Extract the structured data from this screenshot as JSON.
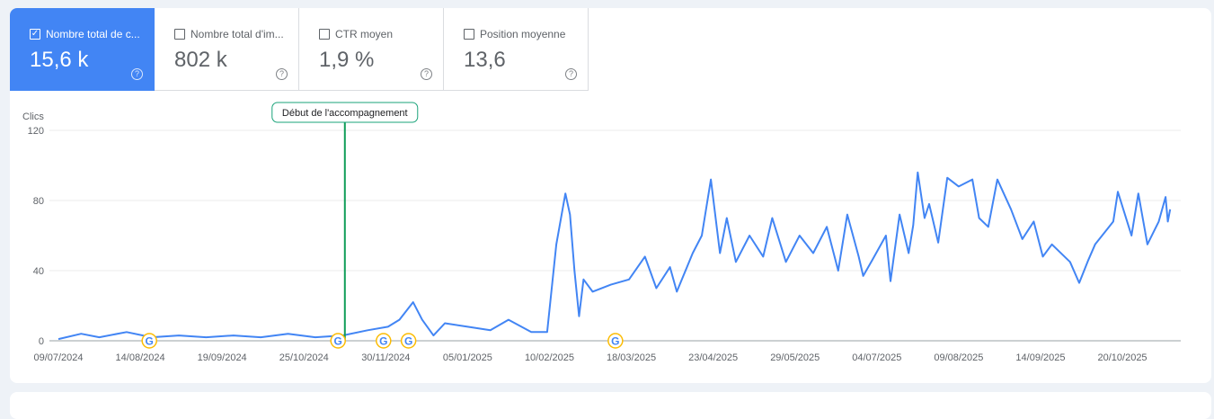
{
  "metrics": [
    {
      "label": "Nombre total de c...",
      "value": "15,6 k",
      "checked": true
    },
    {
      "label": "Nombre total d'im...",
      "value": "802 k",
      "checked": false
    },
    {
      "label": "CTR moyen",
      "value": "1,9 %",
      "checked": false
    },
    {
      "label": "Position moyenne",
      "value": "13,6",
      "checked": false
    }
  ],
  "colors": {
    "accent": "#4285f4",
    "line": "#4285f4",
    "annotation": "#0f9d58"
  },
  "chart_data": {
    "type": "line",
    "ylabel": "Clics",
    "ylim": [
      0,
      120
    ],
    "yticks": [
      "0",
      "40",
      "80",
      "120"
    ],
    "xticks": [
      "09/07/2024",
      "14/08/2024",
      "19/09/2024",
      "25/10/2024",
      "30/11/2024",
      "05/01/2025",
      "10/02/2025",
      "18/03/2025",
      "23/04/2025",
      "29/05/2025",
      "04/07/2025",
      "09/08/2025",
      "14/09/2025",
      "20/10/2025"
    ],
    "grid": true,
    "annotation": {
      "label": "Début de l'accompagnement",
      "date": "12/11/2024"
    },
    "google_updates": [
      "18/08/2024",
      "09/11/2024",
      "29/11/2024",
      "10/12/2024",
      "11/03/2025"
    ],
    "series": [
      {
        "points": [
          [
            "09/07/2024",
            1
          ],
          [
            "19/07/2024",
            4
          ],
          [
            "27/07/2024",
            2
          ],
          [
            "08/08/2024",
            5
          ],
          [
            "19/08/2024",
            2
          ],
          [
            "31/08/2024",
            3
          ],
          [
            "12/09/2024",
            2
          ],
          [
            "24/09/2024",
            3
          ],
          [
            "06/10/2024",
            2
          ],
          [
            "18/10/2024",
            4
          ],
          [
            "30/10/2024",
            2
          ],
          [
            "11/11/2024",
            3
          ],
          [
            "22/11/2024",
            6
          ],
          [
            "01/12/2024",
            8
          ],
          [
            "06/12/2024",
            12
          ],
          [
            "12/12/2024",
            22
          ],
          [
            "16/12/2024",
            12
          ],
          [
            "21/12/2024",
            3
          ],
          [
            "26/12/2024",
            10
          ],
          [
            "05/01/2025",
            8
          ],
          [
            "15/01/2025",
            6
          ],
          [
            "23/01/2025",
            12
          ],
          [
            "02/02/2025",
            5
          ],
          [
            "09/02/2025",
            5
          ],
          [
            "13/02/2025",
            55
          ],
          [
            "17/02/2025",
            84
          ],
          [
            "19/02/2025",
            72
          ],
          [
            "21/02/2025",
            40
          ],
          [
            "23/02/2025",
            14
          ],
          [
            "25/02/2025",
            35
          ],
          [
            "01/03/2025",
            28
          ],
          [
            "09/03/2025",
            32
          ],
          [
            "17/03/2025",
            35
          ],
          [
            "24/03/2025",
            48
          ],
          [
            "29/03/2025",
            30
          ],
          [
            "04/04/2025",
            42
          ],
          [
            "07/04/2025",
            28
          ],
          [
            "14/04/2025",
            50
          ],
          [
            "18/04/2025",
            60
          ],
          [
            "22/04/2025",
            92
          ],
          [
            "26/04/2025",
            50
          ],
          [
            "29/04/2025",
            70
          ],
          [
            "03/05/2025",
            45
          ],
          [
            "09/05/2025",
            60
          ],
          [
            "15/05/2025",
            48
          ],
          [
            "19/05/2025",
            70
          ],
          [
            "25/05/2025",
            45
          ],
          [
            "31/05/2025",
            60
          ],
          [
            "06/06/2025",
            50
          ],
          [
            "12/06/2025",
            65
          ],
          [
            "17/06/2025",
            40
          ],
          [
            "21/06/2025",
            72
          ],
          [
            "26/06/2025",
            48
          ],
          [
            "28/06/2025",
            37
          ],
          [
            "02/07/2025",
            46
          ],
          [
            "08/07/2025",
            60
          ],
          [
            "10/07/2025",
            34
          ],
          [
            "14/07/2025",
            72
          ],
          [
            "18/07/2025",
            50
          ],
          [
            "20/07/2025",
            66
          ],
          [
            "22/07/2025",
            96
          ],
          [
            "25/07/2025",
            70
          ],
          [
            "27/07/2025",
            78
          ],
          [
            "31/07/2025",
            56
          ],
          [
            "04/08/2025",
            93
          ],
          [
            "09/08/2025",
            88
          ],
          [
            "15/08/2025",
            92
          ],
          [
            "18/08/2025",
            70
          ],
          [
            "22/08/2025",
            65
          ],
          [
            "26/08/2025",
            92
          ],
          [
            "01/09/2025",
            75
          ],
          [
            "06/09/2025",
            58
          ],
          [
            "11/09/2025",
            68
          ],
          [
            "15/09/2025",
            48
          ],
          [
            "19/09/2025",
            55
          ],
          [
            "27/09/2025",
            45
          ],
          [
            "01/10/2025",
            33
          ],
          [
            "05/10/2025",
            46
          ],
          [
            "08/10/2025",
            55
          ],
          [
            "16/10/2025",
            68
          ],
          [
            "18/10/2025",
            85
          ],
          [
            "24/10/2025",
            60
          ],
          [
            "27/10/2025",
            84
          ],
          [
            "31/10/2025",
            55
          ],
          [
            "05/11/2025",
            68
          ],
          [
            "08/11/2025",
            82
          ],
          [
            "09/11/2025",
            68
          ],
          [
            "10/11/2025",
            75
          ]
        ]
      }
    ]
  }
}
